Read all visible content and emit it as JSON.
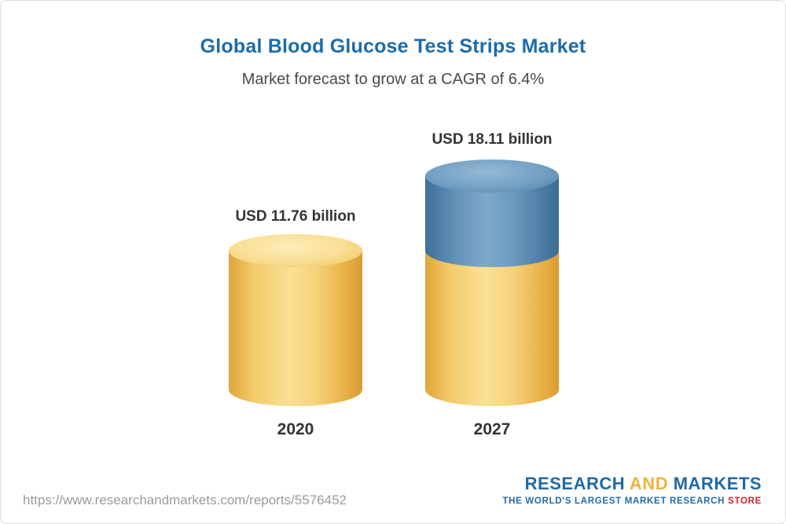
{
  "chart_data": {
    "type": "bar",
    "variant": "3d-cylinder-stacked",
    "title": "Global Blood Glucose Test Strips Market",
    "subtitle": "Market forecast to grow at a CAGR of 6.4%",
    "cagr_percent": 6.4,
    "unit": "USD billion",
    "categories": [
      "2020",
      "2027"
    ],
    "values": [
      11.76,
      18.11
    ],
    "value_labels": [
      "USD 11.76 billion",
      "USD 18.11 billion"
    ],
    "legend": "none",
    "grid": "off",
    "colors": {
      "base_segment": "#F4C75E",
      "growth_segment": "#5C8CB4",
      "title_text": "#1B6CAB",
      "label_text": "#333333"
    }
  },
  "footer": {
    "source_url": "https://www.researchandmarkets.com/reports/5576452",
    "logo": {
      "word1": "RESEARCH",
      "word2": "AND",
      "word3": "MARKETS",
      "tagline_main": "THE WORLD'S LARGEST MARKET RESEARCH",
      "tagline_accent": "STORE",
      "brand_blue": "#1E6AA7",
      "brand_gold": "#F0B23C",
      "brand_red": "#C9252C"
    }
  }
}
